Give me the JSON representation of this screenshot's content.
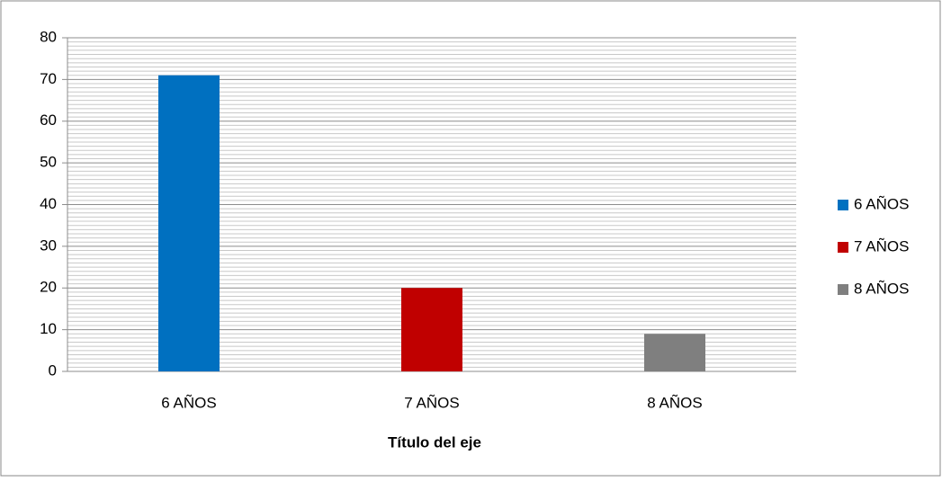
{
  "chart_data": {
    "type": "bar",
    "categories": [
      "6 AÑOS",
      "7 AÑOS",
      "8 AÑOS"
    ],
    "values": [
      71,
      20,
      9
    ],
    "colors": [
      "#0070c0",
      "#c00000",
      "#7f7f7f"
    ],
    "x_axis_title": "Título del eje",
    "ylim": [
      0,
      80
    ],
    "yticks": [
      0,
      10,
      20,
      30,
      40,
      50,
      60,
      70,
      80
    ],
    "minor_yticks": [
      1,
      2,
      3,
      4,
      5,
      6,
      7,
      8,
      9,
      11,
      12,
      13,
      14,
      15,
      16,
      17,
      18,
      19,
      21,
      22,
      23,
      24,
      25,
      26,
      27,
      28,
      29,
      31,
      32,
      33,
      34,
      35,
      36,
      37,
      38,
      39,
      41,
      42,
      43,
      44,
      45,
      46,
      47,
      48,
      49,
      51,
      52,
      53,
      54,
      55,
      56,
      57,
      58,
      59,
      61,
      62,
      63,
      64,
      65,
      66,
      67,
      68,
      69,
      71,
      72,
      73,
      74,
      75,
      76,
      77,
      78,
      79
    ],
    "grid": true,
    "legend": "right"
  }
}
